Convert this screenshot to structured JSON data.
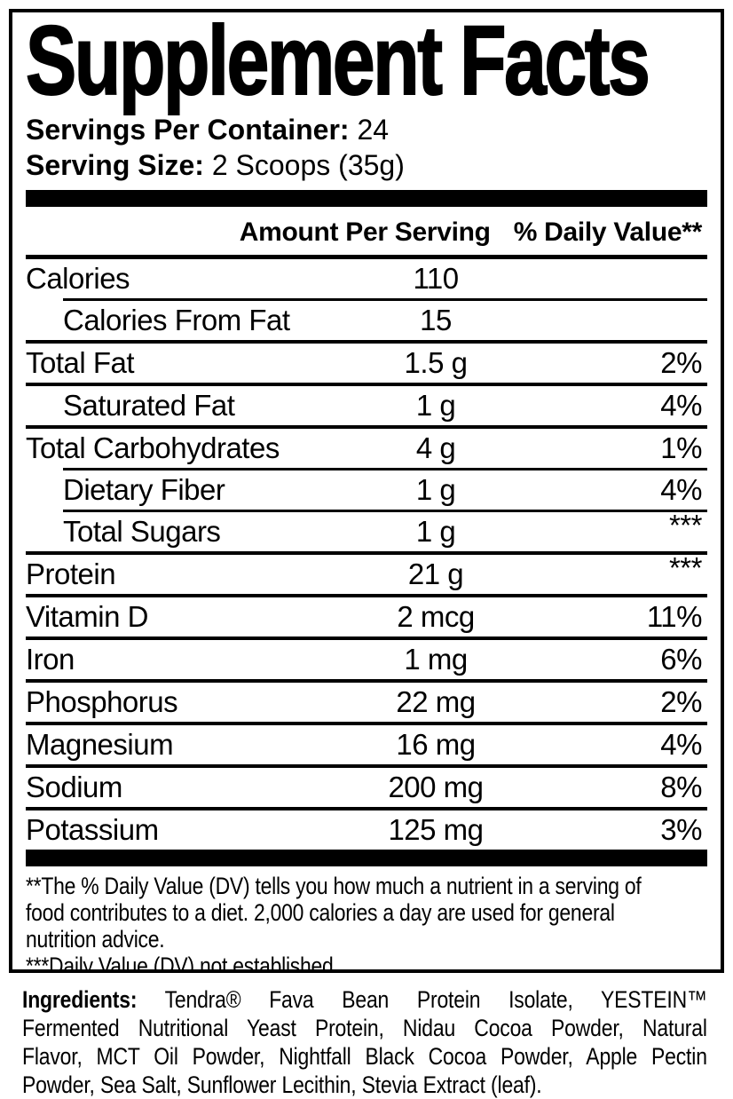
{
  "colors": {
    "text": "#000000",
    "background": "#ffffff"
  },
  "facts": {
    "title": "Supplement Facts",
    "servings_per_container_label": "Servings Per Container:",
    "servings_per_container_value": "24",
    "serving_size_label": "Serving Size:",
    "serving_size_value": "2 Scoops (35g)",
    "col_amount": "Amount Per Serving",
    "col_dv": "% Daily Value**",
    "rows": [
      {
        "name": "Calories",
        "amount": "110",
        "dv": "",
        "indent": false
      },
      {
        "name": "Calories From Fat",
        "amount": "15",
        "dv": "",
        "indent": true
      },
      {
        "name": "Total Fat",
        "amount": "1.5 g",
        "dv": "2%",
        "indent": false
      },
      {
        "name": "Saturated Fat",
        "amount": "1 g",
        "dv": "4%",
        "indent": true
      },
      {
        "name": "Total Carbohydrates",
        "amount": "4 g",
        "dv": "1%",
        "indent": false
      },
      {
        "name": "Dietary Fiber",
        "amount": "1 g",
        "dv": "4%",
        "indent": true
      },
      {
        "name": "Total Sugars",
        "amount": "1 g",
        "dv": "***",
        "indent": true
      },
      {
        "name": "Protein",
        "amount": "21 g",
        "dv": "***",
        "indent": false
      },
      {
        "name": "Vitamin D",
        "amount": "2 mcg",
        "dv": "11%",
        "indent": false
      },
      {
        "name": "Iron",
        "amount": "1 mg",
        "dv": "6%",
        "indent": false
      },
      {
        "name": "Phosphorus",
        "amount": "22 mg",
        "dv": "2%",
        "indent": false
      },
      {
        "name": "Magnesium",
        "amount": "16 mg",
        "dv": "4%",
        "indent": false
      },
      {
        "name": "Sodium",
        "amount": "200 mg",
        "dv": "8%",
        "indent": false
      },
      {
        "name": "Potassium",
        "amount": "125 mg",
        "dv": "3%",
        "indent": false
      }
    ],
    "footnote_lines": [
      "**The % Daily Value (DV) tells you how much a nutrient in a serving of",
      "food contributes to a diet. 2,000 calories a day are used for general",
      "nutrition advice.",
      "***Daily Value (DV) not established."
    ]
  },
  "ingredients": {
    "label": "Ingredients:",
    "lines": [
      "Tendra® Fava Bean Protein Isolate, YESTEIN™",
      "Fermented Nutritional Yeast Protein, Nidau Cocoa Powder, Natural",
      "Flavor, MCT Oil Powder, Nightfall Black Cocoa Powder, Apple Pectin",
      "Powder, Sea Salt, Sunflower Lecithin, Stevia Extract (leaf)."
    ]
  }
}
